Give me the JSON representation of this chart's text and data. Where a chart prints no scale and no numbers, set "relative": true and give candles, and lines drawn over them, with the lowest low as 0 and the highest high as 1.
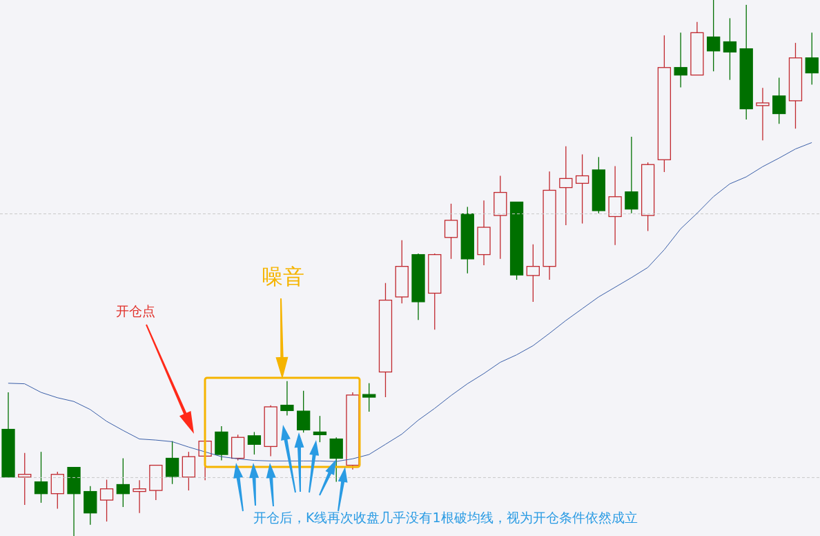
{
  "chart_data": {
    "type": "candlestick",
    "relative": true,
    "categories": [
      null,
      null,
      null,
      null,
      null,
      null,
      null,
      null,
      null,
      null,
      null,
      null,
      null,
      null,
      null,
      null,
      null,
      null,
      null,
      null,
      null,
      null,
      null,
      null,
      null,
      null,
      null,
      null,
      null,
      null,
      null,
      null,
      null,
      null,
      null,
      null,
      null,
      null,
      null,
      null,
      null,
      null,
      null,
      null,
      null,
      null,
      null,
      null,
      null,
      null
    ],
    "ohlc": [
      [
        0.199,
        0.268,
        0.11,
        0.11
      ],
      [
        0.11,
        0.155,
        0.058,
        0.115
      ],
      [
        0.101,
        0.157,
        0.062,
        0.079
      ],
      [
        0.079,
        0.12,
        0.051,
        0.115
      ],
      [
        0.128,
        0.128,
        0,
        0.079
      ],
      [
        0.083,
        0.093,
        0.021,
        0.043
      ],
      [
        0.067,
        0.105,
        0.027,
        0.088
      ],
      [
        0.096,
        0.145,
        0.054,
        0.079
      ],
      [
        0.083,
        0.104,
        0.043,
        0.088
      ],
      [
        0.085,
        0.132,
        0.067,
        0.132
      ],
      [
        0.145,
        0.177,
        0.097,
        0.111
      ],
      [
        0.11,
        0.157,
        0.085,
        0.148
      ],
      [
        0.149,
        0.18,
        0.104,
        0.177
      ],
      [
        0.194,
        0.205,
        0.141,
        0.152
      ],
      [
        0.145,
        0.189,
        0.141,
        0.184
      ],
      [
        0.187,
        0.194,
        0.152,
        0.171
      ],
      [
        0.167,
        0.244,
        0.149,
        0.241
      ],
      [
        0.244,
        0.289,
        0.225,
        0.234
      ],
      [
        0.233,
        0.271,
        0.193,
        0.198
      ],
      [
        0.194,
        0.224,
        0.175,
        0.189
      ],
      [
        0.181,
        0.184,
        0.101,
        0.145
      ],
      [
        0.132,
        0.268,
        0.124,
        0.263
      ],
      [
        0.264,
        0.285,
        0.232,
        0.259
      ],
      [
        0.306,
        0.472,
        0.259,
        0.44
      ],
      [
        0.446,
        0.552,
        0.434,
        0.503
      ],
      [
        0.525,
        0.527,
        0.403,
        0.437
      ],
      [
        0.453,
        0.527,
        0.385,
        0.525
      ],
      [
        0.557,
        0.62,
        0.517,
        0.589
      ],
      [
        0.601,
        0.614,
        0.49,
        0.517
      ],
      [
        0.525,
        0.626,
        0.505,
        0.576
      ],
      [
        0.598,
        0.672,
        0.517,
        0.641
      ],
      [
        0.623,
        0.623,
        0.478,
        0.487
      ],
      [
        0.486,
        0.544,
        0.437,
        0.503
      ],
      [
        0.503,
        0.68,
        0.478,
        0.645
      ],
      [
        0.65,
        0.727,
        0.58,
        0.667
      ],
      [
        0.658,
        0.712,
        0.583,
        0.672
      ],
      [
        0.683,
        0.707,
        0.602,
        0.607
      ],
      [
        0.596,
        0.69,
        0.543,
        0.633
      ],
      [
        0.642,
        0.745,
        0.602,
        0.61
      ],
      [
        0.598,
        0.697,
        0.569,
        0.693
      ],
      [
        0.702,
        0.934,
        0.679,
        0.874
      ],
      [
        0.874,
        0.939,
        0.837,
        0.86
      ],
      [
        0.86,
        0.959,
        0.86,
        0.939
      ],
      [
        0.931,
        1,
        0.867,
        0.905
      ],
      [
        0.922,
        0.966,
        0.851,
        0.903
      ],
      [
        0.909,
        0.991,
        0.777,
        0.797
      ],
      [
        0.803,
        0.836,
        0.738,
        0.808
      ],
      [
        0.821,
        0.855,
        0.769,
        0.788
      ],
      [
        0.812,
        0.92,
        0.76,
        0.892
      ],
      [
        0.892,
        0.939,
        0.842,
        0.864
      ]
    ],
    "colors": [
      "#007000",
      "#c0272d",
      "#007000",
      "#c0272d",
      "#007000",
      "#007000",
      "#c0272d",
      "#007000",
      "#c0272d",
      "#c0272d",
      "#007000",
      "#c0272d",
      "#c0272d",
      "#007000",
      "#c0272d",
      "#007000",
      "#c0272d",
      "#007000",
      "#007000",
      "#007000",
      "#007000",
      "#c0272d",
      "#007000",
      "#c0272d",
      "#c0272d",
      "#007000",
      "#c0272d",
      "#c0272d",
      "#007000",
      "#c0272d",
      "#c0272d",
      "#007000",
      "#c0272d",
      "#c0272d",
      "#c0272d",
      "#c0272d",
      "#007000",
      "#c0272d",
      "#007000",
      "#c0272d",
      "#c0272d",
      "#007000",
      "#c0272d",
      "#007000",
      "#007000",
      "#007000",
      "#c0272d",
      "#007000",
      "#c0272d",
      "#007000"
    ],
    "series": [
      {
        "type": "line",
        "color": "#3a5fa8",
        "values": [
          0.285,
          0.284,
          0.268,
          0.258,
          0.251,
          0.236,
          0.214,
          0.197,
          0.181,
          0.179,
          0.176,
          0.166,
          0.157,
          0.148,
          0.144,
          0.141,
          0.14,
          0.14,
          0.14,
          0.14,
          0.139,
          0.144,
          0.152,
          0.171,
          0.19,
          0.216,
          0.238,
          0.262,
          0.284,
          0.303,
          0.324,
          0.338,
          0.355,
          0.378,
          0.402,
          0.424,
          0.446,
          0.464,
          0.482,
          0.501,
          0.534,
          0.573,
          0.602,
          0.633,
          0.657,
          0.67,
          0.689,
          0.705,
          0.722,
          0.734
        ]
      }
    ],
    "ref_lines": [
      {
        "axis": "y",
        "value": 0.601,
        "color": "#c8c8c8",
        "line_style": "dashed"
      },
      {
        "axis": "y",
        "value": 0.109,
        "color": "#c8c8c8",
        "line_style": "dashed"
      }
    ],
    "annotations": [
      "开仓点",
      "噪音",
      "开仓后，K线再次收盘几乎没有1根破均线，视为开仓条件依然成立"
    ]
  }
}
